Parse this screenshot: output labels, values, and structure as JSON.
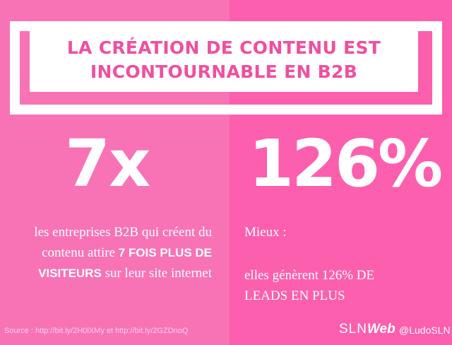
{
  "title": {
    "line1": "LA CRÉATION DE CONTENU EST",
    "line2": "INCONTOURNABLE EN B2B"
  },
  "left": {
    "stat": "7x",
    "text_a": "les entreprises B2B qui créent du contenu attire ",
    "text_b": "7 FOIS PLUS DE VISITEURS",
    "text_c": " sur leur site internet"
  },
  "right": {
    "stat": "126%",
    "label": "Mieux :",
    "text_a": "elles génèrent 126% DE",
    "text_b": "LEADS EN PLUS"
  },
  "footer": {
    "source": "Source : http://bit.ly/2H0lXMy et http://bit.ly/2GZDnoQ",
    "brand_thin": "SLN",
    "brand_bold": "Web",
    "handle": "@LudoSLN"
  },
  "colors": {
    "left_panel": "#f873b6",
    "right_panel": "#fc5fad",
    "accent_text": "#f04f9f"
  }
}
